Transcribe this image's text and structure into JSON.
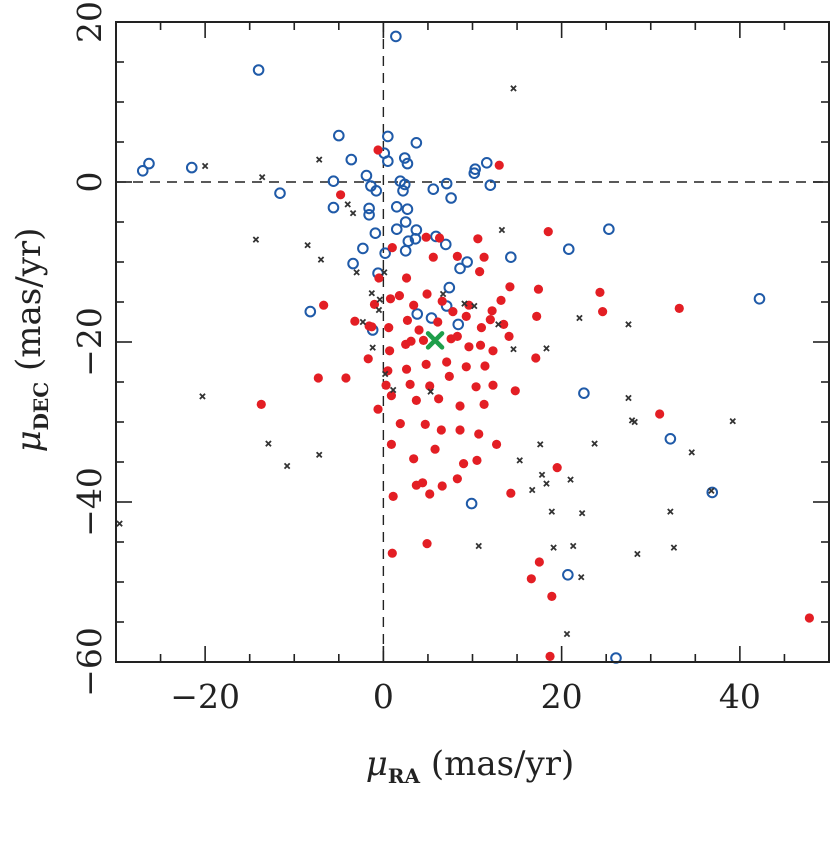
{
  "chart_data": {
    "type": "scatter",
    "xlabel": {
      "symbol": "μ",
      "sub": "RA",
      "unit": " (mas/yr)"
    },
    "ylabel": {
      "symbol": "μ",
      "sub": "DEC",
      "unit": " (mas/yr)"
    },
    "xlim": [
      -30,
      50
    ],
    "ylim": [
      -60,
      20
    ],
    "x_ticks": [
      -20,
      0,
      20,
      40
    ],
    "y_ticks": [
      -60,
      -40,
      -20,
      0,
      20
    ],
    "x_tick_labels": [
      "−20",
      "0",
      "20",
      "40"
    ],
    "y_tick_labels": [
      "−60",
      "−40",
      "−20",
      "0",
      "20"
    ],
    "x_minor_step": 5,
    "y_minor_step": 5,
    "reference_lines": {
      "x": 0,
      "y": 0,
      "style": "dashed"
    },
    "colors": {
      "red": "#e31e24",
      "blue": "#1f5aa8",
      "cross": "#333333",
      "center": "#1e9e4a"
    },
    "series": [
      {
        "marker": "open-circle",
        "color": "#1f5aa8",
        "points": [
          [
            1.4,
            18.2
          ],
          [
            -14,
            14
          ],
          [
            -26.3,
            2.3
          ],
          [
            -27,
            1.4
          ],
          [
            -21.5,
            1.8
          ],
          [
            -11.6,
            -1.4
          ],
          [
            -5,
            5.8
          ],
          [
            -3.6,
            2.8
          ],
          [
            -5.6,
            0.1
          ],
          [
            -5.6,
            -3.2
          ],
          [
            -1.9,
            0.8
          ],
          [
            -1.4,
            -0.5
          ],
          [
            -0.8,
            -1.1
          ],
          [
            0.1,
            3.6
          ],
          [
            0.5,
            2.6
          ],
          [
            0.5,
            5.7
          ],
          [
            1.9,
            0.1
          ],
          [
            2.4,
            3.0
          ],
          [
            2.7,
            2.3
          ],
          [
            3.7,
            4.9
          ],
          [
            2.4,
            -0.3
          ],
          [
            1.5,
            -3.1
          ],
          [
            2.7,
            -3.4
          ],
          [
            -1.6,
            -3.3
          ],
          [
            -1.6,
            -4.1
          ],
          [
            -0.9,
            -6.4
          ],
          [
            1.5,
            -5.9
          ],
          [
            2.5,
            -5.0
          ],
          [
            3.7,
            -6.0
          ],
          [
            2.8,
            -7.4
          ],
          [
            3.6,
            -7.1
          ],
          [
            2.5,
            -8.6
          ],
          [
            5.9,
            -6.8
          ],
          [
            7.0,
            -7.8
          ],
          [
            -2.3,
            -8.3
          ],
          [
            0.2,
            -8.9
          ],
          [
            -0.6,
            -11.4
          ],
          [
            -3.4,
            -10.2
          ],
          [
            9.4,
            -10.0
          ],
          [
            8.6,
            -10.8
          ],
          [
            7.4,
            -13.2
          ],
          [
            10.2,
            1.1
          ],
          [
            10.3,
            1.6
          ],
          [
            11.6,
            2.4
          ],
          [
            12.0,
            -0.4
          ],
          [
            5.6,
            -0.9
          ],
          [
            7.1,
            -0.2
          ],
          [
            7.6,
            -2.0
          ],
          [
            2.2,
            -1.1
          ],
          [
            14.3,
            -9.4
          ],
          [
            20.8,
            -8.4
          ],
          [
            25.3,
            -5.9
          ],
          [
            42.2,
            -14.6
          ],
          [
            -8.2,
            -16.2
          ],
          [
            -1.2,
            -18.5
          ],
          [
            3.8,
            -16.5
          ],
          [
            7.1,
            -15.5
          ],
          [
            5.4,
            -17.0
          ],
          [
            8.4,
            -17.8
          ],
          [
            22.5,
            -26.4
          ],
          [
            32.2,
            -32.1
          ],
          [
            36.9,
            -38.8
          ],
          [
            9.9,
            -40.2
          ],
          [
            20.7,
            -49.1
          ],
          [
            26.1,
            -59.5
          ]
        ]
      },
      {
        "marker": "filled-circle",
        "color": "#e31e24",
        "points": [
          [
            -0.6,
            4.0
          ],
          [
            13.0,
            2.1
          ],
          [
            -4.8,
            -1.6
          ],
          [
            1.0,
            -8.2
          ],
          [
            4.8,
            -6.9
          ],
          [
            6.3,
            -7.0
          ],
          [
            10.6,
            -7.1
          ],
          [
            18.5,
            -6.2
          ],
          [
            5.6,
            -9.4
          ],
          [
            8.3,
            -9.3
          ],
          [
            11.3,
            -9.4
          ],
          [
            -0.5,
            -12.0
          ],
          [
            2.6,
            -12.0
          ],
          [
            -6.7,
            -15.4
          ],
          [
            -1.0,
            -15.3
          ],
          [
            0.8,
            -14.6
          ],
          [
            1.8,
            -14.2
          ],
          [
            3.4,
            -15.4
          ],
          [
            4.9,
            -14.0
          ],
          [
            6.6,
            -14.9
          ],
          [
            9.6,
            -15.4
          ],
          [
            12.2,
            -16.1
          ],
          [
            14.2,
            -13.1
          ],
          [
            17.4,
            -13.4
          ],
          [
            -3.2,
            -17.4
          ],
          [
            -1.6,
            -18.0
          ],
          [
            0.6,
            -18.2
          ],
          [
            2.7,
            -17.3
          ],
          [
            4.0,
            -18.5
          ],
          [
            6.1,
            -17.5
          ],
          [
            7.8,
            -16.2
          ],
          [
            9.3,
            -16.8
          ],
          [
            11.0,
            -18.2
          ],
          [
            13.5,
            -17.8
          ],
          [
            17.2,
            -16.8
          ],
          [
            24.6,
            -16.2
          ],
          [
            -1.7,
            -22.1
          ],
          [
            0.7,
            -21.1
          ],
          [
            2.5,
            -20.3
          ],
          [
            4.5,
            -19.8
          ],
          [
            7.6,
            -19.6
          ],
          [
            9.6,
            -20.6
          ],
          [
            12.3,
            -21.1
          ],
          [
            14.1,
            -19.3
          ],
          [
            17.1,
            -22.0
          ],
          [
            0.5,
            -23.6
          ],
          [
            2.6,
            -23.4
          ],
          [
            4.8,
            -22.8
          ],
          [
            7.1,
            -22.5
          ],
          [
            9.3,
            -23.1
          ],
          [
            11.4,
            -23.0
          ],
          [
            0.3,
            -25.4
          ],
          [
            3.0,
            -25.3
          ],
          [
            5.2,
            -25.5
          ],
          [
            7.4,
            -24.3
          ],
          [
            10.4,
            -25.6
          ],
          [
            12.3,
            -25.4
          ],
          [
            14.8,
            -26.1
          ],
          [
            -7.3,
            -24.5
          ],
          [
            -4.2,
            -24.5
          ],
          [
            -13.7,
            -27.8
          ],
          [
            0.9,
            -26.7
          ],
          [
            3.7,
            -27.3
          ],
          [
            6.2,
            -27.1
          ],
          [
            8.6,
            -28.0
          ],
          [
            11.3,
            -27.8
          ],
          [
            -0.6,
            -28.4
          ],
          [
            1.9,
            -30.2
          ],
          [
            4.7,
            -30.3
          ],
          [
            6.5,
            -31.0
          ],
          [
            8.6,
            -31.0
          ],
          [
            10.7,
            -31.5
          ],
          [
            12.7,
            -32.8
          ],
          [
            0.9,
            -32.8
          ],
          [
            3.4,
            -34.6
          ],
          [
            5.8,
            -33.4
          ],
          [
            10.5,
            -34.8
          ],
          [
            4.4,
            -37.6
          ],
          [
            8.3,
            -37.1
          ],
          [
            3.7,
            -37.9
          ],
          [
            6.6,
            -38.0
          ],
          [
            5.2,
            -39.0
          ],
          [
            1.1,
            -39.3
          ],
          [
            14.3,
            -38.9
          ],
          [
            9.0,
            -35.2
          ],
          [
            19.5,
            -35.7
          ],
          [
            31.0,
            -29.0
          ],
          [
            33.2,
            -15.8
          ],
          [
            24.3,
            -13.8
          ],
          [
            10.8,
            -11.2
          ],
          [
            12.0,
            -17.2
          ],
          [
            13.2,
            -14.8
          ],
          [
            1.0,
            -46.4
          ],
          [
            4.9,
            -45.2
          ],
          [
            16.6,
            -49.6
          ],
          [
            18.9,
            -51.8
          ],
          [
            17.5,
            -47.5
          ],
          [
            18.7,
            -59.3
          ],
          [
            47.8,
            -54.5
          ],
          [
            -1.3,
            -18.1
          ],
          [
            3.1,
            -19.9
          ],
          [
            8.3,
            -19.3
          ],
          [
            10.9,
            -20.4
          ]
        ]
      },
      {
        "marker": "cross",
        "color": "#333333",
        "points": [
          [
            14.6,
            11.7
          ],
          [
            -20.0,
            2.0
          ],
          [
            -13.6,
            0.6
          ],
          [
            -7.2,
            2.8
          ],
          [
            -4.0,
            -2.8
          ],
          [
            -3.4,
            -3.9
          ],
          [
            -14.3,
            -7.2
          ],
          [
            -8.5,
            -7.9
          ],
          [
            -7.0,
            -9.7
          ],
          [
            -3.0,
            -11.3
          ],
          [
            0.1,
            -11.3
          ],
          [
            -1.3,
            -13.9
          ],
          [
            -0.4,
            -14.7
          ],
          [
            -0.5,
            -16.0
          ],
          [
            6.7,
            -14.0
          ],
          [
            9.1,
            -15.2
          ],
          [
            13.3,
            -6.0
          ],
          [
            12.9,
            -17.8
          ],
          [
            14.6,
            -20.9
          ],
          [
            18.3,
            -20.8
          ],
          [
            22.0,
            -17.0
          ],
          [
            27.5,
            -17.8
          ],
          [
            -20.3,
            -26.8
          ],
          [
            -12.9,
            -32.7
          ],
          [
            -10.8,
            -35.5
          ],
          [
            -7.2,
            -34.1
          ],
          [
            -29.6,
            -42.7
          ],
          [
            0.2,
            -24.0
          ],
          [
            1.1,
            -26.0
          ],
          [
            5.3,
            -26.2
          ],
          [
            27.5,
            -27.0
          ],
          [
            27.9,
            -29.8
          ],
          [
            28.2,
            -30.0
          ],
          [
            23.7,
            -32.7
          ],
          [
            34.6,
            -33.8
          ],
          [
            39.2,
            -29.9
          ],
          [
            15.3,
            -34.8
          ],
          [
            17.6,
            -32.8
          ],
          [
            16.7,
            -38.5
          ],
          [
            17.8,
            -36.6
          ],
          [
            18.3,
            -37.7
          ],
          [
            21.0,
            -37.2
          ],
          [
            18.9,
            -41.2
          ],
          [
            22.3,
            -41.4
          ],
          [
            32.2,
            -41.2
          ],
          [
            36.8,
            -38.6
          ],
          [
            10.7,
            -45.5
          ],
          [
            19.1,
            -45.7
          ],
          [
            21.3,
            -45.5
          ],
          [
            28.5,
            -46.5
          ],
          [
            32.6,
            -45.7
          ],
          [
            22.2,
            -49.4
          ],
          [
            20.6,
            -56.5
          ],
          [
            10.2,
            -15.5
          ],
          [
            -1.2,
            -20.7
          ],
          [
            -2.3,
            -17.5
          ]
        ]
      }
    ],
    "center_marker": {
      "marker": "x",
      "color": "#1e9e4a",
      "point": [
        5.8,
        -19.8
      ]
    }
  }
}
